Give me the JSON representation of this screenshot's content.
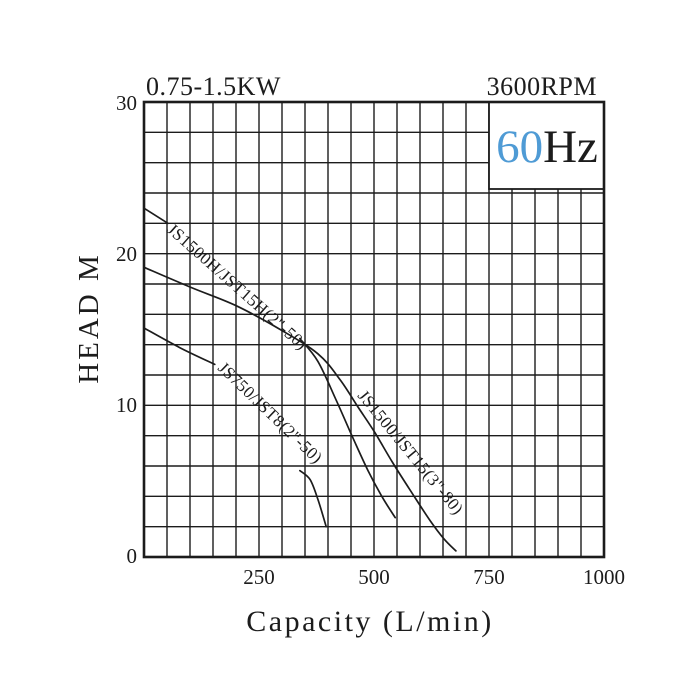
{
  "header": {
    "power_rating": "0.75-1.5KW",
    "speed": "3600RPM",
    "frequency_value": "60",
    "frequency_unit": "Hz"
  },
  "chart_data": {
    "type": "line",
    "title": "",
    "xlabel": "Capacity (L/min)",
    "ylabel": "HEAD M",
    "xlim": [
      0,
      1000
    ],
    "ylim": [
      0,
      30
    ],
    "x_tick_labels": [
      "250",
      "500",
      "750",
      "1000"
    ],
    "y_tick_labels": [
      "30",
      "20",
      "10",
      "0"
    ],
    "x_tick_values": [
      250,
      500,
      750,
      1000
    ],
    "y_tick_values": [
      30,
      20,
      10,
      0
    ],
    "x_minor_grid_step": 50,
    "y_minor_grid_step": 2,
    "grid": "on",
    "legend_position": "labels-along-curves",
    "series": [
      {
        "name": "JS1500H/JST15H(2\"-50)",
        "points": [
          [
            0,
            23.0
          ],
          [
            52,
            22.0
          ],
          [
            120,
            20.6
          ],
          [
            210,
            18.0
          ],
          [
            290,
            15.6
          ],
          [
            339,
            14.4
          ],
          [
            378,
            12.9
          ],
          [
            417,
            10.4
          ],
          [
            452,
            8.0
          ],
          [
            487,
            5.7
          ],
          [
            517,
            4.0
          ],
          [
            546,
            2.6
          ]
        ]
      },
      {
        "name": "JS1500/JST15(3\"-80)",
        "points": [
          [
            0,
            19.1
          ],
          [
            100,
            17.8
          ],
          [
            198,
            16.6
          ],
          [
            296,
            15.0
          ],
          [
            378,
            13.4
          ],
          [
            426,
            11.7
          ],
          [
            465,
            9.9
          ],
          [
            502,
            8.2
          ],
          [
            541,
            6.2
          ],
          [
            583,
            4.2
          ],
          [
            622,
            2.4
          ],
          [
            652,
            1.2
          ],
          [
            678,
            0.4
          ]
        ]
      },
      {
        "name": "JS750/JST8(2\"-50)",
        "points": [
          [
            0,
            15.1
          ],
          [
            78,
            13.8
          ],
          [
            154,
            12.7
          ],
          [
            240,
            10.6
          ],
          [
            300,
            8.0
          ],
          [
            339,
            5.7
          ],
          [
            361,
            5.1
          ],
          [
            378,
            3.8
          ],
          [
            396,
            2.0
          ]
        ]
      }
    ]
  },
  "colors": {
    "ink": "#1c1c1c",
    "frequency_blue": "#4f9bd5",
    "background": "#ffffff"
  }
}
